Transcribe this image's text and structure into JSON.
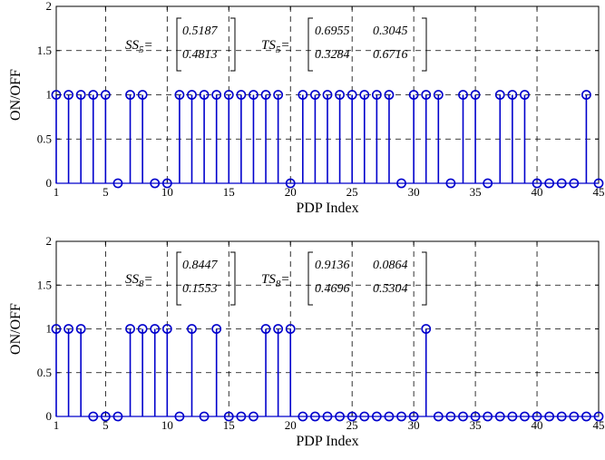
{
  "chart_data": [
    {
      "type": "stem",
      "xlabel": "PDP Index",
      "ylabel": "ON/OFF",
      "xlim": [
        1,
        45
      ],
      "ylim": [
        0,
        2
      ],
      "grid": true,
      "xticks": [
        "1",
        "5",
        "10",
        "15",
        "20",
        "25",
        "30",
        "35",
        "40",
        "45"
      ],
      "yticks": [
        "0",
        "0.5",
        "1",
        "1.5",
        "2"
      ],
      "color": "#0000cc",
      "x": [
        1,
        2,
        3,
        4,
        5,
        6,
        7,
        8,
        9,
        10,
        11,
        12,
        13,
        14,
        15,
        16,
        17,
        18,
        19,
        20,
        21,
        22,
        23,
        24,
        25,
        26,
        27,
        28,
        29,
        30,
        31,
        32,
        33,
        34,
        35,
        36,
        37,
        38,
        39,
        40,
        41,
        42,
        43,
        44,
        45
      ],
      "values": [
        1,
        1,
        1,
        1,
        1,
        0,
        1,
        1,
        0,
        0,
        1,
        1,
        1,
        1,
        1,
        1,
        1,
        1,
        1,
        0,
        1,
        1,
        1,
        1,
        1,
        1,
        1,
        1,
        0,
        1,
        1,
        1,
        0,
        1,
        1,
        0,
        1,
        1,
        1,
        0,
        0,
        0,
        0,
        1,
        0
      ],
      "annotation": {
        "ss_label": "SS",
        "ss_sub": "5",
        "ss_matrix": [
          [
            "0.5187"
          ],
          [
            "0.4813"
          ]
        ],
        "ts_label": "TS",
        "ts_sub": "5",
        "ts_matrix": [
          [
            "0.6955",
            "0.3045"
          ],
          [
            "0.3284",
            "0.6716"
          ]
        ]
      }
    },
    {
      "type": "stem",
      "xlabel": "PDP Index",
      "ylabel": "ON/OFF",
      "xlim": [
        1,
        45
      ],
      "ylim": [
        0,
        2
      ],
      "grid": true,
      "xticks": [
        "1",
        "5",
        "10",
        "15",
        "20",
        "25",
        "30",
        "35",
        "40",
        "45"
      ],
      "yticks": [
        "0",
        "0.5",
        "1",
        "1.5",
        "2"
      ],
      "color": "#0000cc",
      "x": [
        1,
        2,
        3,
        4,
        5,
        6,
        7,
        8,
        9,
        10,
        11,
        12,
        13,
        14,
        15,
        16,
        17,
        18,
        19,
        20,
        21,
        22,
        23,
        24,
        25,
        26,
        27,
        28,
        29,
        30,
        31,
        32,
        33,
        34,
        35,
        36,
        37,
        38,
        39,
        40,
        41,
        42,
        43,
        44,
        45
      ],
      "values": [
        1,
        1,
        1,
        0,
        0,
        0,
        1,
        1,
        1,
        1,
        0,
        1,
        0,
        1,
        0,
        0,
        0,
        1,
        1,
        1,
        0,
        0,
        0,
        0,
        0,
        0,
        0,
        0,
        0,
        0,
        1,
        0,
        0,
        0,
        0,
        0,
        0,
        0,
        0,
        0,
        0,
        0,
        0,
        0,
        0
      ],
      "annotation": {
        "ss_label": "SS",
        "ss_sub": "8",
        "ss_matrix": [
          [
            "0.8447"
          ],
          [
            "0.1553"
          ]
        ],
        "ts_label": "TS",
        "ts_sub": "8",
        "ts_matrix": [
          [
            "0.9136",
            "0.0864"
          ],
          [
            "0.4696",
            "0.5304"
          ]
        ]
      }
    }
  ]
}
